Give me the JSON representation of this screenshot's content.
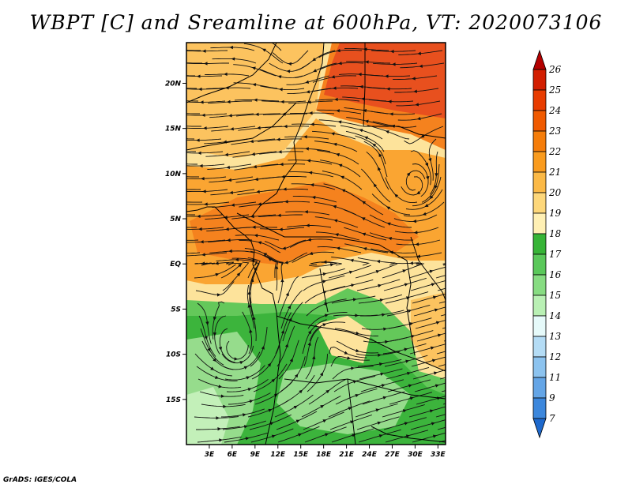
{
  "title": "WBPT [C] and Sreamline at 600hPa, VT: 2020073106",
  "footer": "GrADS: IGES/COLA",
  "map": {
    "lat_labels": [
      "20N",
      "15N",
      "10N",
      "5N",
      "EQ",
      "5S",
      "10S",
      "15S"
    ],
    "lat_values": [
      20,
      15,
      10,
      5,
      0,
      -5,
      -10,
      -15
    ],
    "lon_labels": [
      "3E",
      "6E",
      "9E",
      "12E",
      "15E",
      "18E",
      "21E",
      "24E",
      "27E",
      "30E",
      "33E"
    ],
    "lon_values": [
      3,
      6,
      9,
      12,
      15,
      18,
      21,
      24,
      27,
      30,
      33
    ],
    "lon_range": [
      0,
      34
    ],
    "lat_range": [
      -20,
      24.5
    ]
  },
  "colorbar": {
    "labels": [
      "26",
      "25",
      "24",
      "23",
      "22",
      "21",
      "20",
      "19",
      "18",
      "17",
      "16",
      "15",
      "14",
      "13",
      "12",
      "11",
      "9",
      "7"
    ],
    "colors": [
      "#b40000",
      "#d21e00",
      "#e83c00",
      "#f05a00",
      "#f57d0a",
      "#f99b1e",
      "#fbb946",
      "#fdd77a",
      "#fff0b4",
      "#37b437",
      "#5ac85a",
      "#87dc82",
      "#b9f0b4",
      "#e6fafa",
      "#b4dcf5",
      "#8cc3ef",
      "#64a5e6",
      "#3c87dc",
      "#1e69cd"
    ]
  },
  "field_colors": {
    "very_warm": "#e8501e",
    "warm": "#f5821e",
    "warm_mid": "#faa532",
    "mid": "#fcc35f",
    "cool_mid": "#fde39b",
    "green_dark": "#3cb43c",
    "green": "#64c85a",
    "green_light": "#96dc8c",
    "green_pale": "#c3f0b9"
  }
}
